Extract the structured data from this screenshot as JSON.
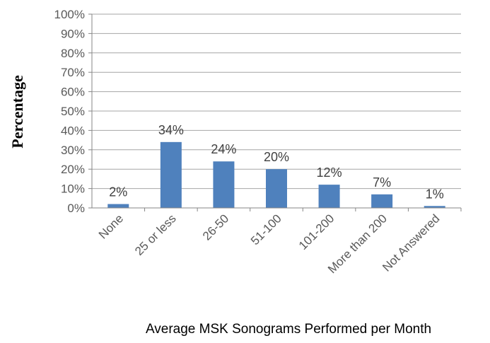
{
  "chart_data": {
    "type": "bar",
    "title": "",
    "xlabel": "Average MSK Sonograms Performed per Month",
    "ylabel": "Percentage",
    "categories": [
      "None",
      "25 or less",
      "26-50",
      "51-100",
      "101-200",
      "More than 200",
      "Not Answered"
    ],
    "values": [
      2,
      34,
      24,
      20,
      12,
      7,
      1
    ],
    "data_labels": [
      "2%",
      "34%",
      "24%",
      "20%",
      "12%",
      "7%",
      "1%"
    ],
    "yticks": [
      "0%",
      "10%",
      "20%",
      "30%",
      "40%",
      "50%",
      "60%",
      "70%",
      "80%",
      "90%",
      "100%"
    ],
    "ylim": [
      0,
      100
    ],
    "grid": true,
    "legend": "none",
    "colors": {
      "bar": "#4F81BD",
      "grid": "#A6A6A6",
      "axis": "#868686"
    }
  }
}
